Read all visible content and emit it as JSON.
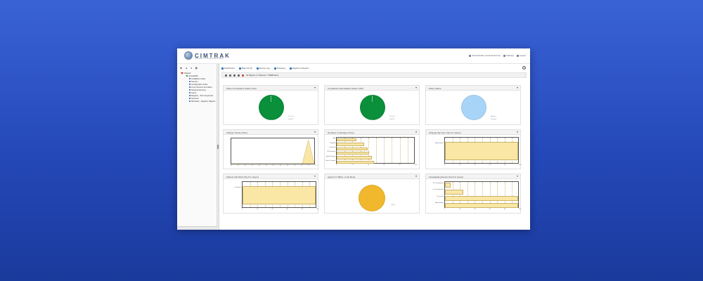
{
  "app": {
    "brand": "CIMTRAK",
    "brand_sub": "INTEGRITY SUITE & COMPLIANCE",
    "colors": {
      "background": "#2d52c4",
      "accent": "#2c6fbb",
      "pass": "#0a8f3a",
      "warn": "#f1b82d",
      "info": "#a8d4f8",
      "bar": "#fbe7a5"
    }
  },
  "topbar": {
    "links": [
      {
        "icon": "user-icon",
        "label": "Administrator (Cimtrak Server)"
      },
      {
        "icon": "gear-icon",
        "label": "Settings"
      },
      {
        "icon": "logout-icon",
        "label": "Logout"
      }
    ]
  },
  "sidebar": {
    "tools": [
      "◆",
      "▲",
      "●",
      "◼"
    ],
    "root": "Objects",
    "server": "cimtrak001",
    "items": [
      {
        "icon": "folder-icon",
        "label": "CIMTRAK001"
      },
      {
        "icon": "server-icon",
        "label": "Installation Files"
      },
      {
        "icon": "server-icon",
        "label": "Servers"
      },
      {
        "icon": "server-icon",
        "label": "Configuration Files"
      },
      {
        "icon": "server-icon",
        "label": "Linux Servers & Folders"
      },
      {
        "icon": "server-icon",
        "label": "Network Devices"
      },
      {
        "icon": "server-icon",
        "label": "Users"
      },
      {
        "icon": "server-icon",
        "label": "Registry - Run Keywords"
      },
      {
        "icon": "server-icon",
        "label": "Services"
      },
      {
        "icon": "server-icon",
        "label": "Windows - Registry Objects"
      }
    ]
  },
  "main": {
    "tabs": [
      {
        "icon": "dashboard-icon",
        "label": "Dashboard"
      },
      {
        "icon": "reports-icon",
        "label": "Reports (0)"
      },
      {
        "icon": "events-icon",
        "label": "Events Log"
      },
      {
        "icon": "ticketing-icon",
        "label": "Ticketing"
      },
      {
        "icon": "export-icon",
        "label": "Register & Export"
      }
    ],
    "filter_text": "All Objects (7 Objects) 7 CMDB Entry"
  },
  "panels": [
    {
      "title": "Object Compliance Status Chart",
      "legend": [
        "Passed",
        "Failed 1"
      ]
    },
    {
      "title": "Compliance Remediation Status Chart",
      "legend": [
        "Passed",
        "Failed 1"
      ]
    },
    {
      "title": "Policy Status",
      "legend": [
        "Applied",
        "Pending"
      ]
    },
    {
      "title": "Change Trends (Time)",
      "legend": []
    },
    {
      "title": "Numbers of Changes (Time)",
      "legend": []
    },
    {
      "title": "Changes By User (Top 5 in Hours)",
      "legend": []
    },
    {
      "title": "Objects with Most (Top 5 in Hours)",
      "legend": []
    },
    {
      "title": "Agents In Offline / Lock Mode",
      "legend": [
        "Offline"
      ]
    },
    {
      "title": "Investigating Events (Top 5 in Hours)",
      "legend": []
    }
  ],
  "chart_data": [
    {
      "type": "pie",
      "title": "Object Compliance Status Chart",
      "slices": [
        {
          "label": "Passed",
          "value": 99.5,
          "color": "#0a8f3a"
        },
        {
          "label": "Failed 1",
          "value": 0.5,
          "color": "#ffffff"
        }
      ]
    },
    {
      "type": "pie",
      "title": "Compliance Remediation Status Chart",
      "slices": [
        {
          "label": "Passed",
          "value": 99.5,
          "color": "#0a8f3a"
        },
        {
          "label": "Failed 1",
          "value": 0.5,
          "color": "#ffffff"
        }
      ]
    },
    {
      "type": "pie",
      "title": "Policy Status",
      "slices": [
        {
          "label": "Applied",
          "value": 100,
          "color": "#a8d4f8"
        }
      ]
    },
    {
      "type": "area",
      "title": "Change Trends (Time)",
      "x": [
        0,
        1,
        2,
        3,
        4,
        5,
        6,
        7,
        8,
        9,
        10,
        11,
        12,
        13,
        14
      ],
      "values": [
        0,
        0,
        0,
        0,
        0,
        0,
        0,
        0,
        0,
        0,
        0,
        0,
        0,
        12,
        0
      ],
      "ylim": [
        0,
        12
      ],
      "ticks_x": [
        "00",
        "01",
        "02",
        "03",
        "04",
        "05",
        "06",
        "07",
        "08",
        "09",
        "10",
        "11",
        "12"
      ]
    },
    {
      "type": "bar",
      "orientation": "horizontal",
      "title": "Numbers of Changes (Time)",
      "categories": [
        "Add",
        "Modified",
        "Removed",
        "Acl Changes",
        "Attrib Changes",
        "Owner Changes"
      ],
      "values": [
        25,
        35,
        40,
        42,
        45,
        48
      ],
      "xlim": [
        0,
        100
      ]
    },
    {
      "type": "bar",
      "title": "Changes By User (Top 5 in Hours)",
      "categories": [
        "Administrator"
      ],
      "values": [
        100
      ],
      "xlim": [
        0,
        100
      ]
    },
    {
      "type": "bar",
      "title": "Objects with Most (Top 5 in Hours)",
      "categories": [
        "Localdrive"
      ],
      "values": [
        100
      ],
      "xlim": [
        0,
        100
      ]
    },
    {
      "type": "pie",
      "title": "Agents In Offline / Lock Mode",
      "slices": [
        {
          "label": "Offline",
          "value": 100,
          "color": "#f1b82d"
        }
      ]
    },
    {
      "type": "bar",
      "orientation": "horizontal",
      "title": "Investigating Events (Top 5 in Hours)",
      "categories": [
        "NT Configuration",
        "Ctrl Configuration",
        "Processed",
        "Administrator"
      ],
      "values": [
        8,
        25,
        100,
        100
      ],
      "xlim": [
        0,
        100
      ]
    }
  ]
}
